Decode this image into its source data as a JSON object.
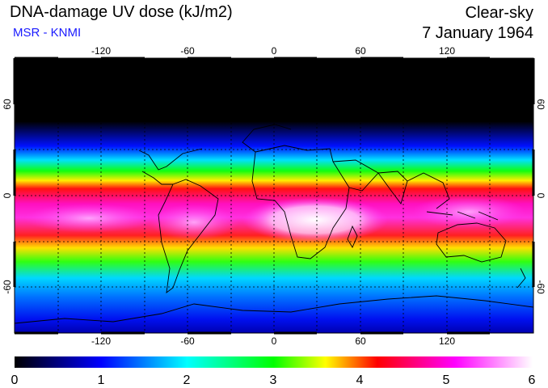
{
  "header": {
    "title": "DNA-damage UV dose (kJ/m2)",
    "credit": "MSR - KNMI",
    "condition": "Clear-sky",
    "date": "7 January 1964"
  },
  "map": {
    "lon_ticks": [
      "-120",
      "-60",
      "0",
      "60",
      "120"
    ],
    "lat_ticks": [
      "60",
      "0",
      "-60"
    ]
  },
  "colorbar": {
    "labels": [
      "0",
      "1",
      "2",
      "3",
      "4",
      "5",
      "6"
    ],
    "stops": [
      "#000000",
      "#0000ff",
      "#00ffff",
      "#00ff00",
      "#ffff00",
      "#ff0000",
      "#ff00ff",
      "#ffffff"
    ]
  },
  "colors": {
    "credit": "#1a1aff",
    "land_outline": "#000000",
    "grid": "#000000"
  }
}
